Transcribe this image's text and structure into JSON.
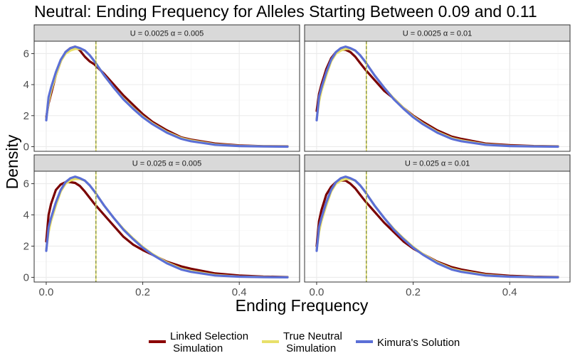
{
  "title": "Neutral: Ending Frequency for Alleles Starting Between 0.09 and 0.11",
  "xlabel": "Ending Frequency",
  "ylabel": "Density",
  "x_ticks": [
    "0.0",
    "0.2",
    "0.4"
  ],
  "y_ticks": [
    "0",
    "2",
    "4",
    "6"
  ],
  "legend": {
    "items": [
      {
        "line1": "Linked Selection",
        "line2": " Simulation",
        "color": "#8b0000"
      },
      {
        "line1": "True Neutral",
        "line2": " Simulation",
        "color": "#e8e06a"
      },
      {
        "line1": "Kimura's Solution",
        "line2": "",
        "color": "#5b6fd6"
      }
    ]
  },
  "chart_data": {
    "type": "line",
    "xlim": [
      -0.025,
      0.525
    ],
    "ylim": [
      -0.3,
      6.8
    ],
    "reference_line_x": 0.103,
    "reference_line_colors": [
      "#e8e06a",
      "#6b7d3c"
    ],
    "panels": [
      {
        "strip": "U = 0.0025 α = 0.005",
        "series": [
          {
            "name": "Linked Selection Simulation",
            "color": "#7a0000",
            "x": [
              0.0,
              0.005,
              0.01,
              0.02,
              0.03,
              0.04,
              0.05,
              0.06,
              0.07,
              0.08,
              0.09,
              0.1,
              0.12,
              0.14,
              0.16,
              0.18,
              0.2,
              0.22,
              0.25,
              0.28,
              0.3,
              0.35,
              0.4,
              0.45,
              0.5
            ],
            "y": [
              1.9,
              2.8,
              3.4,
              4.6,
              5.5,
              6.1,
              6.35,
              6.45,
              6.2,
              5.8,
              5.5,
              5.3,
              4.7,
              4.0,
              3.3,
              2.7,
              2.1,
              1.6,
              1.05,
              0.6,
              0.45,
              0.2,
              0.08,
              0.03,
              0.02
            ]
          },
          {
            "name": "True Neutral Simulation",
            "color": "#e8e06a",
            "x": [
              0.0,
              0.005,
              0.01,
              0.02,
              0.03,
              0.04,
              0.05,
              0.06,
              0.07,
              0.08,
              0.09,
              0.1,
              0.12,
              0.14,
              0.16,
              0.18,
              0.2,
              0.22,
              0.25,
              0.28,
              0.3,
              0.35,
              0.4,
              0.45,
              0.5
            ],
            "y": [
              1.8,
              2.9,
              3.6,
              4.6,
              5.5,
              6.0,
              6.2,
              6.3,
              6.3,
              6.2,
              5.9,
              5.5,
              4.6,
              3.8,
              3.1,
              2.5,
              1.95,
              1.5,
              0.95,
              0.55,
              0.4,
              0.15,
              0.05,
              0.02,
              0.01
            ]
          },
          {
            "name": "Kimura's Solution",
            "color": "#5b6fd6",
            "x": [
              0.0,
              0.005,
              0.01,
              0.02,
              0.03,
              0.04,
              0.05,
              0.06,
              0.07,
              0.08,
              0.09,
              0.1,
              0.12,
              0.14,
              0.16,
              0.18,
              0.2,
              0.22,
              0.25,
              0.28,
              0.3,
              0.35,
              0.4,
              0.45,
              0.5
            ],
            "y": [
              1.7,
              3.2,
              3.8,
              4.8,
              5.6,
              6.1,
              6.35,
              6.45,
              6.35,
              6.2,
              5.9,
              5.5,
              4.6,
              3.8,
              3.05,
              2.45,
              1.9,
              1.45,
              0.9,
              0.5,
              0.35,
              0.12,
              0.04,
              0.01,
              0.0
            ]
          }
        ]
      },
      {
        "strip": "U = 0.0025 α = 0.01",
        "series": [
          {
            "name": "Linked Selection Simulation",
            "color": "#7a0000",
            "x": [
              0.0,
              0.005,
              0.01,
              0.02,
              0.03,
              0.04,
              0.05,
              0.06,
              0.07,
              0.08,
              0.09,
              0.1,
              0.12,
              0.14,
              0.16,
              0.18,
              0.2,
              0.22,
              0.25,
              0.28,
              0.3,
              0.35,
              0.4,
              0.45,
              0.5
            ],
            "y": [
              2.3,
              3.4,
              4.0,
              5.0,
              5.7,
              6.1,
              6.25,
              6.25,
              6.1,
              5.8,
              5.4,
              5.0,
              4.3,
              3.6,
              3.1,
              2.5,
              2.0,
              1.6,
              1.05,
              0.65,
              0.5,
              0.2,
              0.1,
              0.04,
              0.02
            ]
          },
          {
            "name": "True Neutral Simulation",
            "color": "#e8e06a",
            "x": [
              0.0,
              0.005,
              0.01,
              0.02,
              0.03,
              0.04,
              0.05,
              0.06,
              0.07,
              0.08,
              0.09,
              0.1,
              0.12,
              0.14,
              0.16,
              0.18,
              0.2,
              0.22,
              0.25,
              0.28,
              0.3,
              0.35,
              0.4,
              0.45,
              0.5
            ],
            "y": [
              1.8,
              2.9,
              3.6,
              4.6,
              5.5,
              6.0,
              6.2,
              6.3,
              6.3,
              6.2,
              5.9,
              5.5,
              4.6,
              3.8,
              3.1,
              2.5,
              1.95,
              1.5,
              0.95,
              0.55,
              0.4,
              0.15,
              0.05,
              0.02,
              0.01
            ]
          },
          {
            "name": "Kimura's Solution",
            "color": "#5b6fd6",
            "x": [
              0.0,
              0.005,
              0.01,
              0.02,
              0.03,
              0.04,
              0.05,
              0.06,
              0.07,
              0.08,
              0.09,
              0.1,
              0.12,
              0.14,
              0.16,
              0.18,
              0.2,
              0.22,
              0.25,
              0.28,
              0.3,
              0.35,
              0.4,
              0.45,
              0.5
            ],
            "y": [
              1.7,
              3.2,
              3.8,
              4.8,
              5.6,
              6.1,
              6.35,
              6.45,
              6.35,
              6.2,
              5.9,
              5.5,
              4.6,
              3.8,
              3.05,
              2.45,
              1.9,
              1.45,
              0.9,
              0.5,
              0.35,
              0.12,
              0.04,
              0.01,
              0.0
            ]
          }
        ]
      },
      {
        "strip": "U = 0.025 α = 0.005",
        "series": [
          {
            "name": "Linked Selection Simulation",
            "color": "#7a0000",
            "x": [
              0.0,
              0.005,
              0.01,
              0.02,
              0.03,
              0.04,
              0.05,
              0.06,
              0.07,
              0.08,
              0.09,
              0.1,
              0.12,
              0.14,
              0.16,
              0.18,
              0.2,
              0.22,
              0.25,
              0.28,
              0.3,
              0.35,
              0.4,
              0.45,
              0.5
            ],
            "y": [
              2.3,
              4.0,
              4.7,
              5.6,
              5.95,
              6.1,
              6.1,
              6.05,
              5.85,
              5.5,
              5.1,
              4.7,
              4.0,
              3.3,
              2.6,
              2.1,
              1.75,
              1.45,
              1.0,
              0.7,
              0.55,
              0.25,
              0.12,
              0.05,
              0.02
            ]
          },
          {
            "name": "True Neutral Simulation",
            "color": "#e8e06a",
            "x": [
              0.0,
              0.005,
              0.01,
              0.02,
              0.03,
              0.04,
              0.05,
              0.06,
              0.07,
              0.08,
              0.09,
              0.1,
              0.12,
              0.14,
              0.16,
              0.18,
              0.2,
              0.22,
              0.25,
              0.28,
              0.3,
              0.35,
              0.4,
              0.45,
              0.5
            ],
            "y": [
              1.8,
              2.9,
              3.6,
              4.6,
              5.5,
              6.0,
              6.2,
              6.3,
              6.3,
              6.2,
              5.9,
              5.5,
              4.6,
              3.8,
              3.1,
              2.5,
              1.95,
              1.5,
              0.95,
              0.55,
              0.4,
              0.15,
              0.05,
              0.02,
              0.01
            ]
          },
          {
            "name": "Kimura's Solution",
            "color": "#5b6fd6",
            "x": [
              0.0,
              0.005,
              0.01,
              0.02,
              0.03,
              0.04,
              0.05,
              0.06,
              0.07,
              0.08,
              0.09,
              0.1,
              0.12,
              0.14,
              0.16,
              0.18,
              0.2,
              0.22,
              0.25,
              0.28,
              0.3,
              0.35,
              0.4,
              0.45,
              0.5
            ],
            "y": [
              1.7,
              3.2,
              3.8,
              4.8,
              5.6,
              6.1,
              6.35,
              6.45,
              6.35,
              6.2,
              5.9,
              5.5,
              4.6,
              3.8,
              3.05,
              2.45,
              1.9,
              1.45,
              0.9,
              0.5,
              0.35,
              0.12,
              0.04,
              0.01,
              0.0
            ]
          }
        ]
      },
      {
        "strip": "U = 0.025 α = 0.01",
        "series": [
          {
            "name": "Linked Selection Simulation",
            "color": "#7a0000",
            "x": [
              0.0,
              0.005,
              0.01,
              0.02,
              0.03,
              0.04,
              0.05,
              0.06,
              0.07,
              0.08,
              0.09,
              0.1,
              0.12,
              0.14,
              0.16,
              0.18,
              0.2,
              0.22,
              0.25,
              0.28,
              0.3,
              0.35,
              0.4,
              0.45,
              0.5
            ],
            "y": [
              2.0,
              3.6,
              4.3,
              5.3,
              5.8,
              6.1,
              6.2,
              6.2,
              6.0,
              5.7,
              5.3,
              4.9,
              4.2,
              3.5,
              2.9,
              2.3,
              1.85,
              1.5,
              1.0,
              0.65,
              0.5,
              0.22,
              0.1,
              0.04,
              0.02
            ]
          },
          {
            "name": "True Neutral Simulation",
            "color": "#e8e06a",
            "x": [
              0.0,
              0.005,
              0.01,
              0.02,
              0.03,
              0.04,
              0.05,
              0.06,
              0.07,
              0.08,
              0.09,
              0.1,
              0.12,
              0.14,
              0.16,
              0.18,
              0.2,
              0.22,
              0.25,
              0.28,
              0.3,
              0.35,
              0.4,
              0.45,
              0.5
            ],
            "y": [
              1.8,
              2.9,
              3.6,
              4.6,
              5.5,
              6.0,
              6.2,
              6.3,
              6.3,
              6.2,
              5.9,
              5.5,
              4.6,
              3.8,
              3.1,
              2.5,
              1.95,
              1.5,
              0.95,
              0.55,
              0.4,
              0.15,
              0.05,
              0.02,
              0.01
            ]
          },
          {
            "name": "Kimura's Solution",
            "color": "#5b6fd6",
            "x": [
              0.0,
              0.005,
              0.01,
              0.02,
              0.03,
              0.04,
              0.05,
              0.06,
              0.07,
              0.08,
              0.09,
              0.1,
              0.12,
              0.14,
              0.16,
              0.18,
              0.2,
              0.22,
              0.25,
              0.28,
              0.3,
              0.35,
              0.4,
              0.45,
              0.5
            ],
            "y": [
              1.7,
              3.2,
              3.8,
              4.8,
              5.6,
              6.1,
              6.35,
              6.45,
              6.35,
              6.2,
              5.9,
              5.5,
              4.6,
              3.8,
              3.05,
              2.45,
              1.9,
              1.45,
              0.9,
              0.5,
              0.35,
              0.12,
              0.04,
              0.01,
              0.0
            ]
          }
        ]
      }
    ]
  }
}
